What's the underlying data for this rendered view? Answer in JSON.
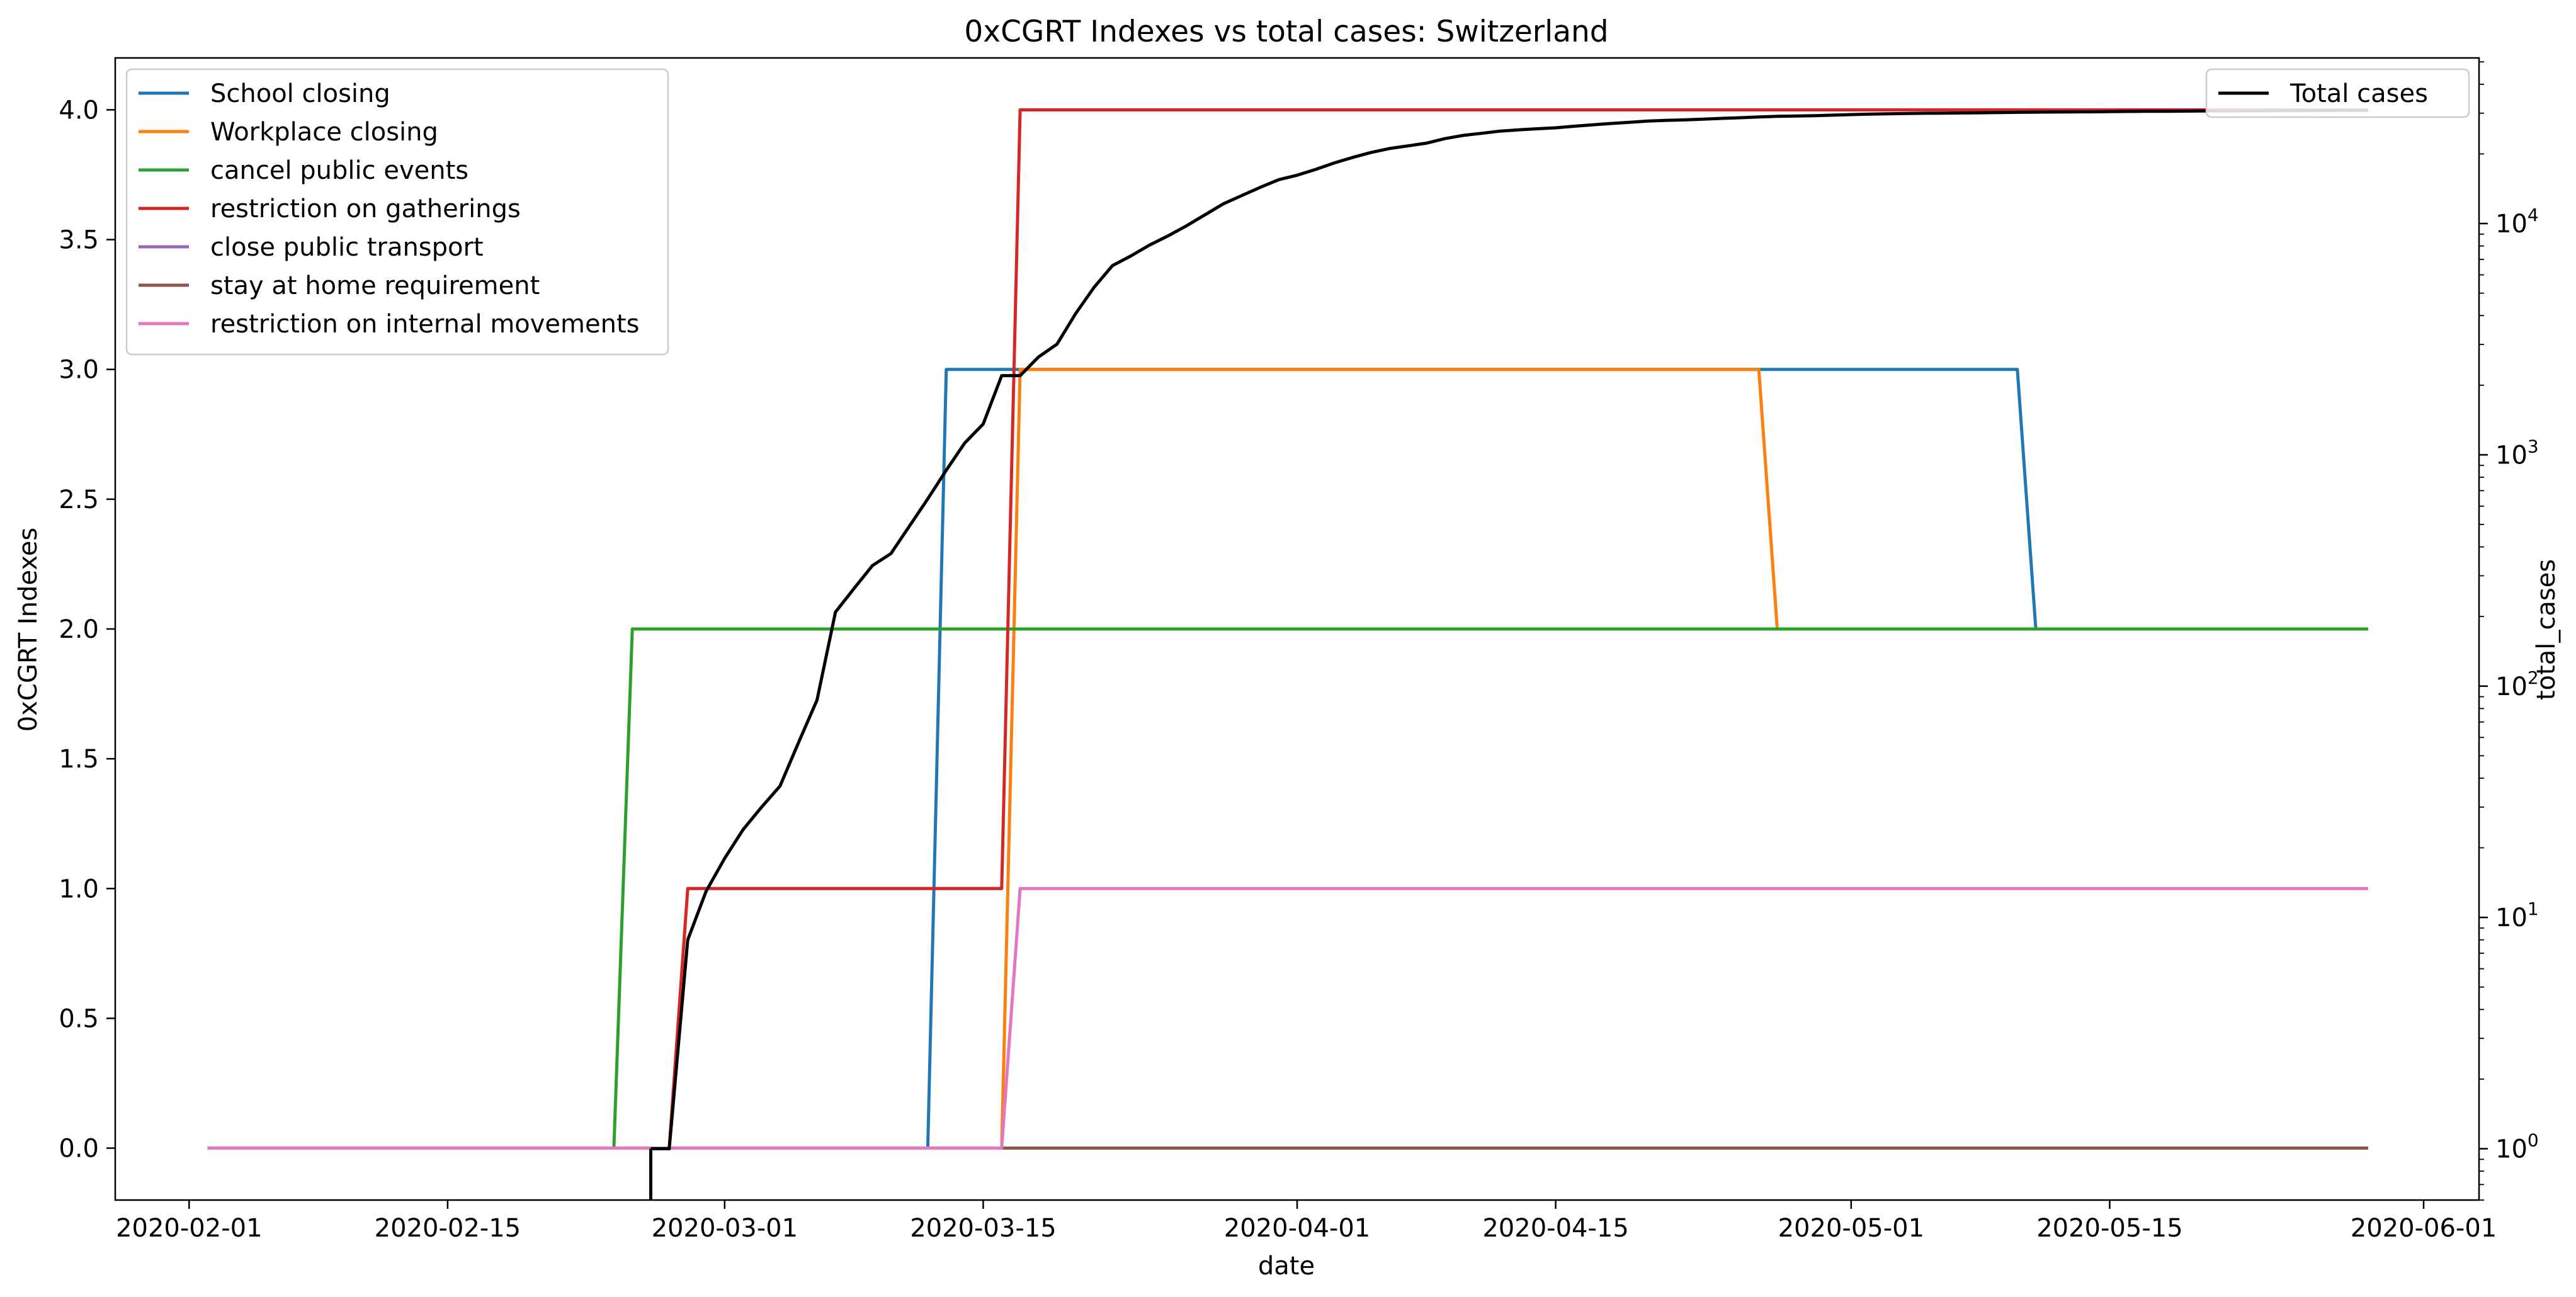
{
  "chart_data": {
    "type": "line",
    "title": "0xCGRT Indexes vs total cases:  Switzerland",
    "xlabel": "date",
    "ylabel_left": "0xCGRT Indexes",
    "ylabel_right": "total_cases",
    "x_range": [
      "2020-01-28",
      "2020-06-04"
    ],
    "y_left_range": [
      -0.2,
      4.2
    ],
    "y_right_scale": "log",
    "y_right_range": [
      0.6,
      52000
    ],
    "x_tick_labels": [
      "2020-02-01",
      "2020-02-15",
      "2020-03-01",
      "2020-03-15",
      "2020-04-01",
      "2020-04-15",
      "2020-05-01",
      "2020-05-15",
      "2020-06-01"
    ],
    "y_left_tick_labels": [
      "0.0",
      "0.5",
      "1.0",
      "1.5",
      "2.0",
      "2.5",
      "3.0",
      "3.5",
      "4.0"
    ],
    "y_left_ticks": [
      0,
      0.5,
      1,
      1.5,
      2,
      2.5,
      3,
      3.5,
      4
    ],
    "y_right_ticks": [
      {
        "value": 1,
        "base": "10",
        "exp": "0"
      },
      {
        "value": 10,
        "base": "10",
        "exp": "1"
      },
      {
        "value": 100,
        "base": "10",
        "exp": "2"
      },
      {
        "value": 1000,
        "base": "10",
        "exp": "3"
      },
      {
        "value": 10000,
        "base": "10",
        "exp": "4"
      }
    ],
    "grid": false,
    "legend_left_placement": "upper-left",
    "legend_right_placement": "upper-right",
    "series": [
      {
        "name": "School closing",
        "color": "#1f77b4",
        "axis": "left",
        "x": [
          "2020-02-02",
          "2020-03-12",
          "2020-03-13",
          "2020-05-10",
          "2020-05-11",
          "2020-05-29"
        ],
        "y": [
          0,
          0,
          3,
          3,
          2,
          2
        ]
      },
      {
        "name": "Workplace closing",
        "color": "#ff7f0e",
        "axis": "left",
        "x": [
          "2020-02-02",
          "2020-03-16",
          "2020-03-17",
          "2020-04-26",
          "2020-04-27",
          "2020-05-29"
        ],
        "y": [
          0,
          0,
          3,
          3,
          2,
          2
        ]
      },
      {
        "name": "cancel public events",
        "color": "#2ca02c",
        "axis": "left",
        "x": [
          "2020-02-02",
          "2020-02-24",
          "2020-02-25",
          "2020-05-29"
        ],
        "y": [
          0,
          0,
          2,
          2
        ]
      },
      {
        "name": "restriction on gatherings",
        "color": "#d62728",
        "axis": "left",
        "x": [
          "2020-02-02",
          "2020-02-27",
          "2020-02-28",
          "2020-03-16",
          "2020-03-17",
          "2020-05-29"
        ],
        "y": [
          0,
          0,
          1,
          1,
          4,
          4
        ]
      },
      {
        "name": "close public transport",
        "color": "#9467bd",
        "axis": "left",
        "x": [
          "2020-02-02",
          "2020-05-29"
        ],
        "y": [
          0,
          0
        ]
      },
      {
        "name": "stay at home requirement",
        "color": "#8c564b",
        "axis": "left",
        "x": [
          "2020-02-02",
          "2020-05-29"
        ],
        "y": [
          0,
          0
        ]
      },
      {
        "name": "restriction on internal movements",
        "color": "#e377c2",
        "axis": "left",
        "x": [
          "2020-02-02",
          "2020-03-16",
          "2020-03-17",
          "2020-05-29"
        ],
        "y": [
          0,
          0,
          1,
          1
        ]
      },
      {
        "name": "Total cases",
        "color": "#000000",
        "axis": "right",
        "x": [
          "2020-02-26",
          "2020-02-27",
          "2020-02-28",
          "2020-02-29",
          "2020-03-01",
          "2020-03-02",
          "2020-03-03",
          "2020-03-04",
          "2020-03-05",
          "2020-03-06",
          "2020-03-07",
          "2020-03-08",
          "2020-03-09",
          "2020-03-10",
          "2020-03-11",
          "2020-03-12",
          "2020-03-13",
          "2020-03-14",
          "2020-03-15",
          "2020-03-16",
          "2020-03-17",
          "2020-03-18",
          "2020-03-19",
          "2020-03-20",
          "2020-03-21",
          "2020-03-22",
          "2020-03-23",
          "2020-03-24",
          "2020-03-25",
          "2020-03-26",
          "2020-03-27",
          "2020-03-28",
          "2020-03-29",
          "2020-03-30",
          "2020-03-31",
          "2020-04-01",
          "2020-04-02",
          "2020-04-03",
          "2020-04-04",
          "2020-04-05",
          "2020-04-06",
          "2020-04-07",
          "2020-04-08",
          "2020-04-09",
          "2020-04-10",
          "2020-04-11",
          "2020-04-12",
          "2020-04-13",
          "2020-04-14",
          "2020-04-15",
          "2020-04-16",
          "2020-04-17",
          "2020-04-18",
          "2020-04-19",
          "2020-04-20",
          "2020-04-21",
          "2020-04-22",
          "2020-04-23",
          "2020-04-24",
          "2020-04-25",
          "2020-04-26",
          "2020-04-27",
          "2020-04-28",
          "2020-04-29",
          "2020-04-30",
          "2020-05-01",
          "2020-05-02",
          "2020-05-03",
          "2020-05-04",
          "2020-05-05",
          "2020-05-06",
          "2020-05-07",
          "2020-05-08",
          "2020-05-09",
          "2020-05-10",
          "2020-05-11",
          "2020-05-12",
          "2020-05-13",
          "2020-05-14",
          "2020-05-15",
          "2020-05-16",
          "2020-05-17",
          "2020-05-18",
          "2020-05-19",
          "2020-05-20",
          "2020-05-21",
          "2020-05-22",
          "2020-05-23",
          "2020-05-24",
          "2020-05-25",
          "2020-05-26",
          "2020-05-27",
          "2020-05-28",
          "2020-05-29"
        ],
        "y": [
          1,
          1,
          8,
          13,
          18,
          24,
          30,
          37,
          57,
          87,
          209,
          264,
          332,
          374,
          491,
          645,
          858,
          1125,
          1359,
          2200,
          2200,
          2650,
          3010,
          4075,
          5294,
          6575,
          7245,
          8060,
          8836,
          9765,
          10897,
          12161,
          13213,
          14336,
          15475,
          16176,
          17139,
          18267,
          19303,
          20278,
          21100,
          21657,
          22253,
          23280,
          24051,
          24551,
          25107,
          25415,
          25688,
          25936,
          26336,
          26732,
          27078,
          27404,
          27740,
          27944,
          28063,
          28268,
          28496,
          28677,
          28894,
          29061,
          29164,
          29264,
          29407,
          29586,
          29705,
          29817,
          29905,
          29981,
          30009,
          30060,
          30126,
          30207,
          30251,
          30305,
          30344,
          30380,
          30413,
          30463,
          30514,
          30572,
          30587,
          30618,
          30658,
          30694,
          30707,
          30725,
          30746,
          30776,
          30796,
          30828,
          30845,
          30862
        ]
      }
    ]
  }
}
